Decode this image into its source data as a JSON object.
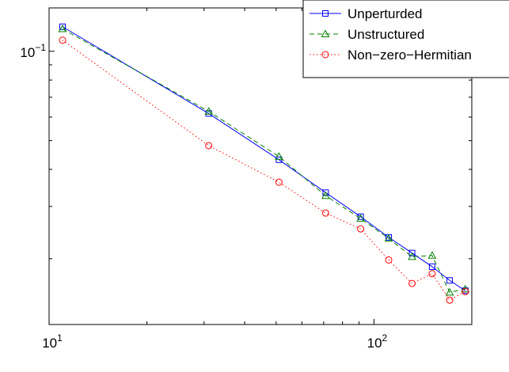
{
  "chart_data": {
    "type": "line",
    "x_scale": "log",
    "y_scale": "log",
    "xlim": [
      10,
      200
    ],
    "ylim": [
      0.012,
      0.14
    ],
    "grid": false,
    "legend_position": "top-right",
    "x_ticks": [
      {
        "value": 10,
        "base": "10",
        "exp": "1"
      },
      {
        "value": 100,
        "base": "10",
        "exp": "2"
      }
    ],
    "y_ticks": [
      {
        "value": 0.1,
        "base": "10",
        "exp": "−1"
      }
    ],
    "series": [
      {
        "name": "Unperturded",
        "color": "#0000ff",
        "line": "solid",
        "marker": "square",
        "x": [
          11,
          31,
          51,
          71,
          91,
          111,
          131,
          151,
          171,
          191
        ],
        "y": [
          0.121,
          0.0617,
          0.0431,
          0.0334,
          0.0277,
          0.0236,
          0.0209,
          0.0188,
          0.0169,
          0.0156
        ]
      },
      {
        "name": "Unstructured",
        "color": "#008000",
        "line": "dashed",
        "marker": "triangle",
        "x": [
          11,
          31,
          51,
          71,
          91,
          111,
          131,
          151,
          171,
          191
        ],
        "y": [
          0.119,
          0.0627,
          0.0442,
          0.0326,
          0.0273,
          0.0234,
          0.0203,
          0.0205,
          0.0154,
          0.0158
        ]
      },
      {
        "name": "Non−zero−Hermitian",
        "color": "#ff0000",
        "line": "dotted",
        "marker": "circle",
        "x": [
          11,
          31,
          51,
          71,
          91,
          111,
          131,
          151,
          171,
          191
        ],
        "y": [
          0.109,
          0.0481,
          0.0362,
          0.0285,
          0.0252,
          0.0198,
          0.0165,
          0.0178,
          0.0145,
          0.0155
        ]
      }
    ]
  }
}
